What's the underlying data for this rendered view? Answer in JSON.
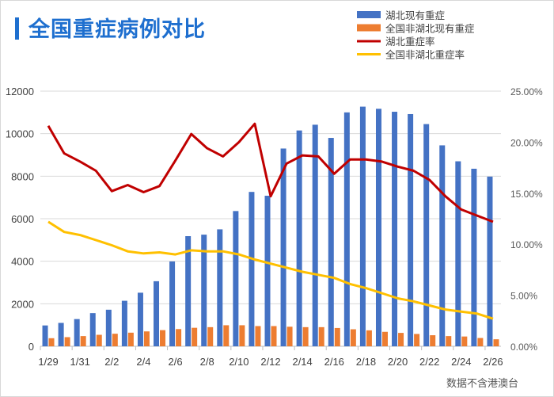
{
  "title": "全国重症病例对比",
  "note": "数据不含港澳台",
  "chart_data": {
    "type": "bar+line",
    "title": "全国重症病例对比",
    "categories": [
      "1/29",
      "1/30",
      "1/31",
      "2/1",
      "2/2",
      "2/3",
      "2/4",
      "2/5",
      "2/6",
      "2/7",
      "2/8",
      "2/9",
      "2/10",
      "2/11",
      "2/12",
      "2/13",
      "2/14",
      "2/15",
      "2/16",
      "2/17",
      "2/18",
      "2/19",
      "2/20",
      "2/21",
      "2/22",
      "2/23",
      "2/24",
      "2/25",
      "2/26"
    ],
    "x_tick_labels": [
      "1/29",
      "1/31",
      "2/2",
      "2/4",
      "2/6",
      "2/8",
      "2/10",
      "2/12",
      "2/14",
      "2/16",
      "2/18",
      "2/20",
      "2/22",
      "2/24",
      "2/26"
    ],
    "y_left": {
      "range": [
        0,
        12000
      ],
      "ticks": [
        "0",
        "2000",
        "4000",
        "6000",
        "8000",
        "10000",
        "12000"
      ]
    },
    "y_right": {
      "range": [
        0,
        25
      ],
      "ticks": [
        "0.00%",
        "5.00%",
        "10.00%",
        "15.00%",
        "20.00%",
        "25.00%"
      ]
    },
    "legend_position": "top-right",
    "grid": true,
    "series": [
      {
        "name": "湖北现有重症",
        "type": "bar",
        "axis": "left",
        "color": "#4472c4",
        "values": [
          980,
          1100,
          1280,
          1560,
          1720,
          2140,
          2520,
          3060,
          3990,
          5180,
          5250,
          5500,
          6360,
          7260,
          7080,
          9300,
          10150,
          10420,
          9800,
          11000,
          11270,
          11170,
          11030,
          10920,
          10450,
          9450,
          8700,
          8350,
          7980
        ]
      },
      {
        "name": "全国非湖北现有重症",
        "type": "bar",
        "axis": "left",
        "color": "#ed7d31",
        "values": [
          380,
          430,
          480,
          540,
          590,
          640,
          700,
          760,
          810,
          870,
          900,
          990,
          990,
          950,
          950,
          920,
          900,
          900,
          860,
          800,
          750,
          680,
          630,
          580,
          520,
          480,
          460,
          390,
          330
        ]
      },
      {
        "name": "湖北重症率",
        "type": "line",
        "axis": "right",
        "color": "#c00000",
        "values": [
          21.6,
          18.9,
          18.1,
          17.2,
          15.2,
          15.8,
          15.1,
          15.7,
          18.2,
          20.8,
          19.4,
          18.6,
          20.0,
          21.8,
          14.7,
          17.9,
          18.7,
          18.6,
          16.9,
          18.3,
          18.3,
          18.1,
          17.6,
          17.2,
          16.3,
          14.7,
          13.4,
          12.8,
          12.2
        ]
      },
      {
        "name": "全国非湖北重症率",
        "type": "line",
        "axis": "right",
        "color": "#ffc000",
        "values": [
          12.2,
          11.2,
          10.9,
          10.4,
          9.9,
          9.3,
          9.1,
          9.2,
          9.0,
          9.4,
          9.3,
          9.3,
          9.0,
          8.5,
          8.1,
          7.7,
          7.3,
          7.0,
          6.7,
          6.1,
          5.7,
          5.2,
          4.7,
          4.4,
          4.0,
          3.6,
          3.4,
          3.2,
          2.7
        ]
      }
    ]
  }
}
